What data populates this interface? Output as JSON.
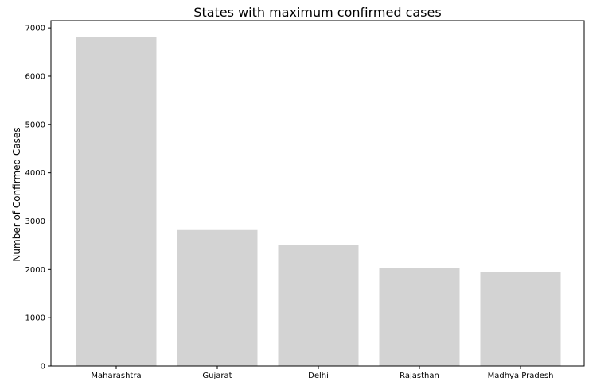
{
  "chart_data": {
    "type": "bar",
    "title": "States with maximum confirmed cases",
    "xlabel": "",
    "ylabel": "Number of Confirmed Cases",
    "categories": [
      "Maharashtra",
      "Gujarat",
      "Delhi",
      "Rajasthan",
      "Madhya Pradesh"
    ],
    "values": [
      6817,
      2815,
      2514,
      2034,
      1952
    ],
    "ylim": [
      0,
      7150
    ],
    "yticks": [
      0,
      1000,
      2000,
      3000,
      4000,
      5000,
      6000,
      7000
    ],
    "bar_color": "#d3d3d3",
    "grid": false,
    "legend": "none"
  }
}
